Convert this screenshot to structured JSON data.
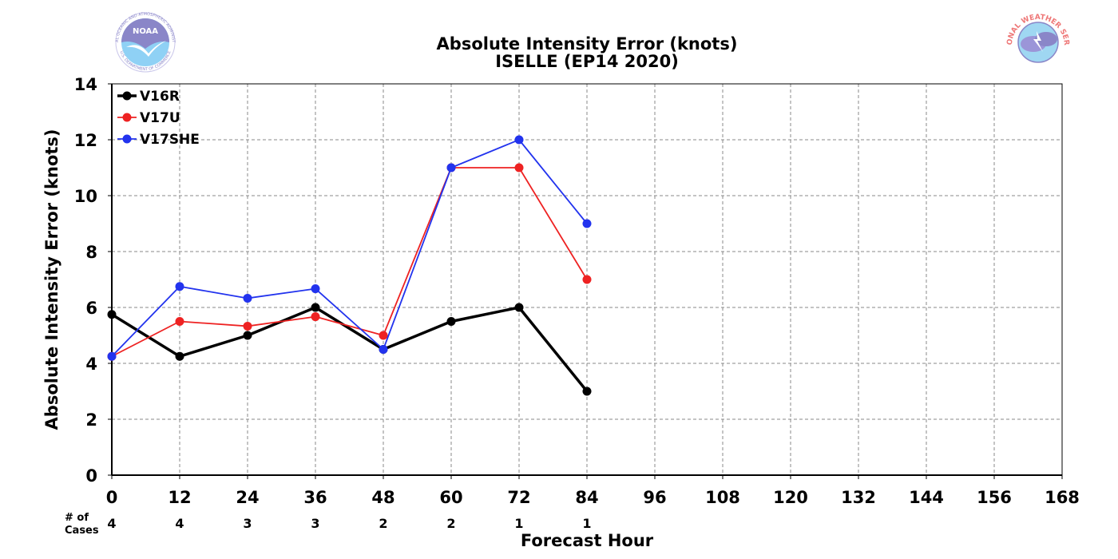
{
  "header": {
    "title_line1": "Absolute Intensity Error (knots)",
    "title_line2": "ISELLE (EP14 2020)"
  },
  "logos": {
    "left_icon": "noaa-logo-icon",
    "left_text": "NOAA",
    "left_ring_text": "NATIONAL OCEANIC AND ATMOSPHERIC ADMINISTRATION",
    "left_ring_text_bottom": "U.S. DEPARTMENT OF COMMERCE",
    "right_icon": "nws-logo-icon",
    "right_ring_text": "NATIONAL WEATHER SERVICE"
  },
  "cases": {
    "label_line1": "# of",
    "label_line2": "Cases",
    "counts": [
      "4",
      "4",
      "3",
      "3",
      "2",
      "2",
      "1",
      "1"
    ]
  },
  "chart_data": {
    "type": "line",
    "title": "Absolute Intensity Error (knots)",
    "subtitle": "ISELLE (EP14 2020)",
    "xlabel": "Forecast Hour",
    "ylabel": "Absolute Intensity Error (knots)",
    "xlim": [
      0,
      168
    ],
    "ylim": [
      0,
      14
    ],
    "xticks": [
      0,
      12,
      24,
      36,
      48,
      60,
      72,
      84,
      96,
      108,
      120,
      132,
      144,
      156,
      168
    ],
    "yticks": [
      0,
      2,
      4,
      6,
      8,
      10,
      12,
      14
    ],
    "grid": true,
    "legend_position": "top-left",
    "series": [
      {
        "name": "V16R",
        "color": "#000000",
        "line_width": "thick",
        "x": [
          0,
          12,
          24,
          36,
          48,
          60,
          72,
          84
        ],
        "values": [
          5.75,
          4.25,
          5.0,
          6.0,
          4.5,
          5.5,
          6.0,
          3.0
        ]
      },
      {
        "name": "V17U",
        "color": "#ee2222",
        "line_width": "thin",
        "x": [
          0,
          12,
          24,
          36,
          48,
          60,
          72,
          84
        ],
        "values": [
          4.25,
          5.5,
          5.33,
          5.67,
          5.0,
          11.0,
          11.0,
          7.0
        ]
      },
      {
        "name": "V17SHE",
        "color": "#2233ee",
        "line_width": "thin",
        "x": [
          0,
          12,
          24,
          36,
          48,
          60,
          72,
          84
        ],
        "values": [
          4.25,
          6.75,
          6.33,
          6.67,
          4.5,
          11.0,
          12.0,
          9.0
        ]
      }
    ]
  }
}
